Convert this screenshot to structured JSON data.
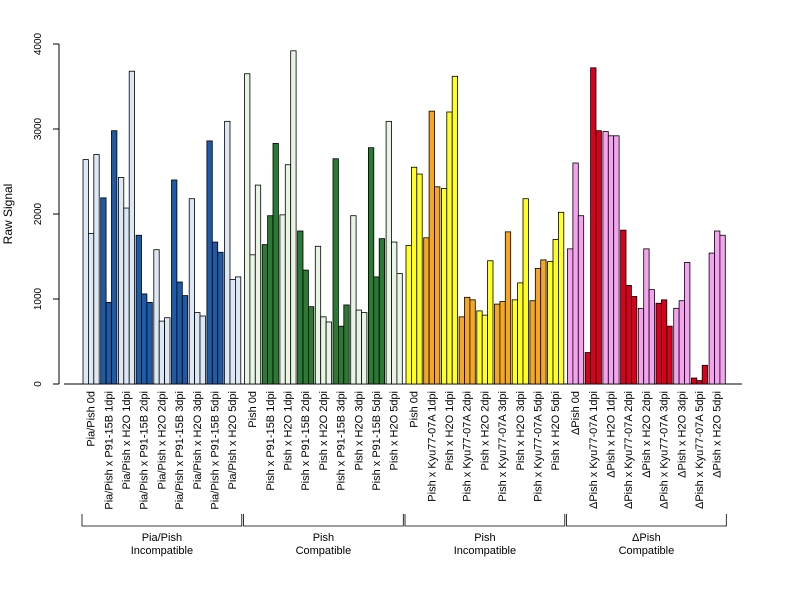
{
  "chart_data": {
    "type": "bar",
    "ylabel": "Raw Signal",
    "ylim": [
      0,
      4000
    ],
    "yticks": [
      0,
      1000,
      2000,
      3000,
      4000
    ],
    "grid": false,
    "legend": "none",
    "bars_per_category": 3,
    "groups": [
      {
        "name_line1": "Pia/Pish",
        "name_line2": "Incompatible",
        "colors": {
          "control": "#dce8f5",
          "treated": "#1f5aa6"
        },
        "categories": [
          {
            "label": "Pia/Pish 0d",
            "role": "control",
            "values": [
              2640,
              1770,
              2700
            ]
          },
          {
            "label": "Pia/Pish x P91-15B 1dpi",
            "role": "treated",
            "values": [
              2190,
              960,
              2980
            ]
          },
          {
            "label": "Pia/Pish x H2O 1dpi",
            "role": "control",
            "values": [
              2430,
              2070,
              3680
            ]
          },
          {
            "label": "Pia/Pish x P91-15B 2dpi",
            "role": "treated",
            "values": [
              1750,
              1060,
              960
            ]
          },
          {
            "label": "Pia/Pish x H2O 2dpi",
            "role": "control",
            "values": [
              1580,
              740,
              780
            ]
          },
          {
            "label": "Pia/Pish x P91-15B 3dpi",
            "role": "treated",
            "values": [
              2400,
              1200,
              1040
            ]
          },
          {
            "label": "Pia/Pish x H2O 3dpi",
            "role": "control",
            "values": [
              2180,
              840,
              800
            ]
          },
          {
            "label": "Pia/Pish x P91-15B 5dpi",
            "role": "treated",
            "values": [
              2860,
              1670,
              1550
            ]
          },
          {
            "label": "Pia/Pish x H2O 5dpi",
            "role": "control",
            "values": [
              3090,
              1230,
              1260
            ]
          }
        ]
      },
      {
        "name_line1": "Pish",
        "name_line2": "Compatible",
        "colors": {
          "control": "#e8f5e4",
          "treated": "#2a7a33"
        },
        "categories": [
          {
            "label": "Pish 0d",
            "role": "control",
            "values": [
              3650,
              1520,
              2340
            ]
          },
          {
            "label": "Pish x P91-15B 1dpi",
            "role": "treated",
            "values": [
              1640,
              1980,
              2830
            ]
          },
          {
            "label": "Pish x H2O 1dpi",
            "role": "control",
            "values": [
              1990,
              2580,
              3920
            ]
          },
          {
            "label": "Pish x P91-15B 2dpi",
            "role": "treated",
            "values": [
              1800,
              1340,
              910
            ]
          },
          {
            "label": "Pish x H2O 2dpi",
            "role": "control",
            "values": [
              1620,
              790,
              730
            ]
          },
          {
            "label": "Pish x P91-15B 3dpi",
            "role": "treated",
            "values": [
              2650,
              680,
              930
            ]
          },
          {
            "label": "Pish x H2O 3dpi",
            "role": "control",
            "values": [
              1980,
              870,
              840
            ]
          },
          {
            "label": "Pish x P91-15B 5dpi",
            "role": "treated",
            "values": [
              2780,
              1260,
              1710
            ]
          },
          {
            "label": "Pish x H2O 5dpi",
            "role": "control",
            "values": [
              3090,
              1670,
              1300
            ]
          }
        ]
      },
      {
        "name_line1": "Pish",
        "name_line2": "Incompatible",
        "colors": {
          "control": "#ffff22",
          "treated": "#f5a623"
        },
        "categories": [
          {
            "label": "Pish 0d",
            "role": "control",
            "values": [
              1630,
              2550,
              2470
            ]
          },
          {
            "label": "Pish x Kyu77-07A 1dpi",
            "role": "treated",
            "values": [
              1720,
              3210,
              2320
            ]
          },
          {
            "label": "Pish x H2O 1dpi",
            "role": "control",
            "values": [
              2300,
              3200,
              3620
            ]
          },
          {
            "label": "Pish x Kyu77-07A 2dpi",
            "role": "treated",
            "values": [
              790,
              1020,
              990
            ]
          },
          {
            "label": "Pish x H2O 2dpi",
            "role": "control",
            "values": [
              860,
              810,
              1450
            ]
          },
          {
            "label": "Pish x Kyu77-07A 3dpi",
            "role": "treated",
            "values": [
              940,
              970,
              1790
            ]
          },
          {
            "label": "Pish x H2O 3dpi",
            "role": "control",
            "values": [
              990,
              1190,
              2180
            ]
          },
          {
            "label": "Pish x Kyu77-07A 5dpi",
            "role": "treated",
            "values": [
              980,
              1360,
              1460
            ]
          },
          {
            "label": "Pish x H2O 5dpi",
            "role": "control",
            "values": [
              1440,
              1700,
              2020
            ]
          }
        ]
      },
      {
        "name_line1": "ΔPish",
        "name_line2": "Compatible",
        "colors": {
          "control": "#f5a3f0",
          "treated": "#d9001b"
        },
        "categories": [
          {
            "label": "ΔPish 0d",
            "role": "control",
            "values": [
              1590,
              2600,
              1980
            ]
          },
          {
            "label": "ΔPish x Kyu77-07A 1dpi",
            "role": "treated",
            "values": [
              370,
              3720,
              2980
            ]
          },
          {
            "label": "ΔPish x H2O 1dpi",
            "role": "control",
            "values": [
              2970,
              2920,
              2920
            ]
          },
          {
            "label": "ΔPish x Kyu77-07A 2dpi",
            "role": "treated",
            "values": [
              1810,
              1160,
              1030
            ]
          },
          {
            "label": "ΔPish x H2O 2dpi",
            "role": "control",
            "values": [
              890,
              1590,
              1110
            ]
          },
          {
            "label": "ΔPish x Kyu77-07A 3dpi",
            "role": "treated",
            "values": [
              950,
              990,
              680
            ]
          },
          {
            "label": "ΔPish x H2O 3dpi",
            "role": "control",
            "values": [
              890,
              980,
              1430
            ]
          },
          {
            "label": "ΔPish x Kyu77-07A 5dpi",
            "role": "treated",
            "values": [
              70,
              40,
              220
            ]
          },
          {
            "label": "ΔPish x H2O 5dpi",
            "role": "control",
            "values": [
              1540,
              1800,
              1750
            ]
          }
        ]
      }
    ]
  }
}
